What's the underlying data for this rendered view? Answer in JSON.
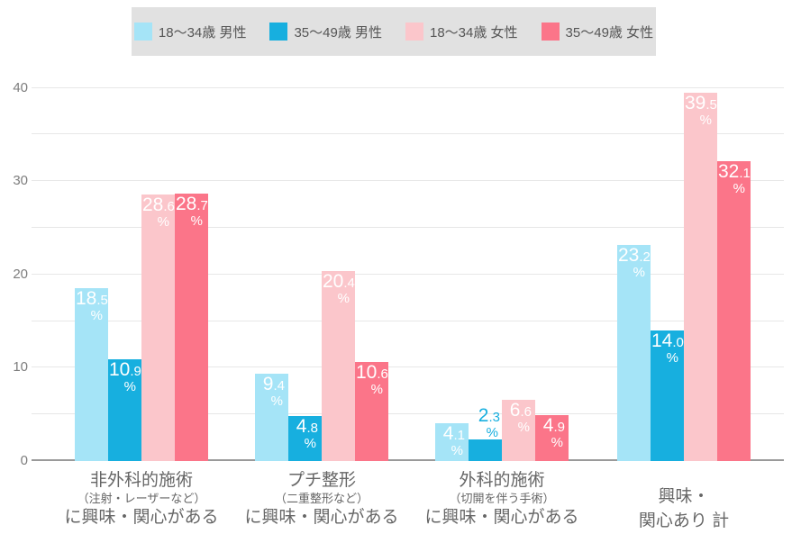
{
  "legend": {
    "background": "#E1E1E1",
    "items": [
      {
        "label": "18〜34歳 男性",
        "color": "#A5E4F7"
      },
      {
        "label": "35〜49歳 男性",
        "color": "#17AFDF"
      },
      {
        "label": "18〜34歳 女性",
        "color": "#FBC6CB"
      },
      {
        "label": "35〜49歳 女性",
        "color": "#FB7589"
      }
    ]
  },
  "chart_data": {
    "type": "bar",
    "title": "",
    "xlabel": "",
    "ylabel": "",
    "categories": [
      [
        "非外科的施術",
        "（注射・レーザーなど）",
        "に興味・関心がある"
      ],
      [
        "プチ整形",
        "（二重整形など）",
        "に興味・関心がある"
      ],
      [
        "外科的施術",
        "（切開を伴う手術）",
        "に興味・関心がある"
      ],
      [
        "興味・",
        "関心あり 計"
      ]
    ],
    "series": [
      {
        "name": "18〜34歳 男性",
        "color": "#A5E4F7",
        "values": [
          18.5,
          9.4,
          4.1,
          23.2
        ]
      },
      {
        "name": "35〜49歳 男性",
        "color": "#17AFDF",
        "values": [
          10.9,
          4.8,
          2.3,
          14.0
        ]
      },
      {
        "name": "18〜34歳 女性",
        "color": "#FBC6CB",
        "values": [
          28.6,
          20.4,
          6.6,
          39.5
        ]
      },
      {
        "name": "35〜49歳 女性",
        "color": "#FB7589",
        "values": [
          28.7,
          10.6,
          4.9,
          32.1
        ]
      }
    ],
    "value_suffix": "%",
    "ylim": [
      0,
      40
    ],
    "yticks": [
      0,
      10,
      20,
      30,
      40
    ],
    "grid_step": 5,
    "grid": true,
    "legend_position": "top",
    "grid_color": "#E7E7E7",
    "axis_color": "#9A9A9A"
  }
}
